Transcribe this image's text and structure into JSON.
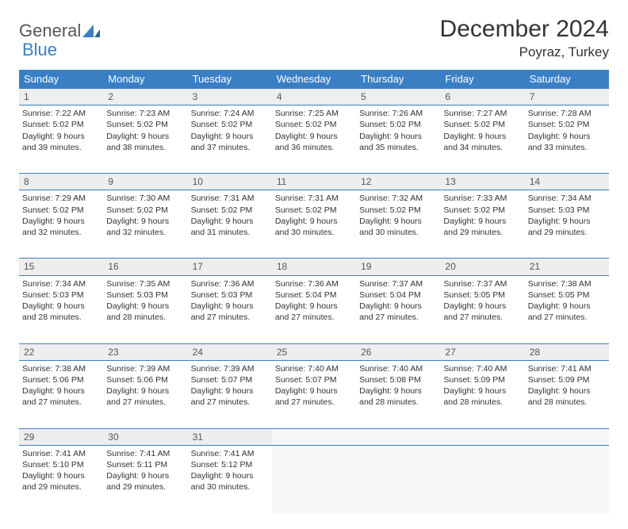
{
  "logo": {
    "part1": "General",
    "part2": "Blue"
  },
  "title": "December 2024",
  "location": "Poyraz, Turkey",
  "colors": {
    "header_bg": "#3a7fc4",
    "header_text": "#ffffff",
    "daynum_bg": "#eeeeee",
    "border": "#3a7fc4",
    "empty_bg": "#f7f7f7",
    "logo_gray": "#555555",
    "logo_blue": "#3a7fc4"
  },
  "weekdays": [
    "Sunday",
    "Monday",
    "Tuesday",
    "Wednesday",
    "Thursday",
    "Friday",
    "Saturday"
  ],
  "weeks": [
    [
      {
        "num": "1",
        "sunrise": "Sunrise: 7:22 AM",
        "sunset": "Sunset: 5:02 PM",
        "day1": "Daylight: 9 hours",
        "day2": "and 39 minutes."
      },
      {
        "num": "2",
        "sunrise": "Sunrise: 7:23 AM",
        "sunset": "Sunset: 5:02 PM",
        "day1": "Daylight: 9 hours",
        "day2": "and 38 minutes."
      },
      {
        "num": "3",
        "sunrise": "Sunrise: 7:24 AM",
        "sunset": "Sunset: 5:02 PM",
        "day1": "Daylight: 9 hours",
        "day2": "and 37 minutes."
      },
      {
        "num": "4",
        "sunrise": "Sunrise: 7:25 AM",
        "sunset": "Sunset: 5:02 PM",
        "day1": "Daylight: 9 hours",
        "day2": "and 36 minutes."
      },
      {
        "num": "5",
        "sunrise": "Sunrise: 7:26 AM",
        "sunset": "Sunset: 5:02 PM",
        "day1": "Daylight: 9 hours",
        "day2": "and 35 minutes."
      },
      {
        "num": "6",
        "sunrise": "Sunrise: 7:27 AM",
        "sunset": "Sunset: 5:02 PM",
        "day1": "Daylight: 9 hours",
        "day2": "and 34 minutes."
      },
      {
        "num": "7",
        "sunrise": "Sunrise: 7:28 AM",
        "sunset": "Sunset: 5:02 PM",
        "day1": "Daylight: 9 hours",
        "day2": "and 33 minutes."
      }
    ],
    [
      {
        "num": "8",
        "sunrise": "Sunrise: 7:29 AM",
        "sunset": "Sunset: 5:02 PM",
        "day1": "Daylight: 9 hours",
        "day2": "and 32 minutes."
      },
      {
        "num": "9",
        "sunrise": "Sunrise: 7:30 AM",
        "sunset": "Sunset: 5:02 PM",
        "day1": "Daylight: 9 hours",
        "day2": "and 32 minutes."
      },
      {
        "num": "10",
        "sunrise": "Sunrise: 7:31 AM",
        "sunset": "Sunset: 5:02 PM",
        "day1": "Daylight: 9 hours",
        "day2": "and 31 minutes."
      },
      {
        "num": "11",
        "sunrise": "Sunrise: 7:31 AM",
        "sunset": "Sunset: 5:02 PM",
        "day1": "Daylight: 9 hours",
        "day2": "and 30 minutes."
      },
      {
        "num": "12",
        "sunrise": "Sunrise: 7:32 AM",
        "sunset": "Sunset: 5:02 PM",
        "day1": "Daylight: 9 hours",
        "day2": "and 30 minutes."
      },
      {
        "num": "13",
        "sunrise": "Sunrise: 7:33 AM",
        "sunset": "Sunset: 5:02 PM",
        "day1": "Daylight: 9 hours",
        "day2": "and 29 minutes."
      },
      {
        "num": "14",
        "sunrise": "Sunrise: 7:34 AM",
        "sunset": "Sunset: 5:03 PM",
        "day1": "Daylight: 9 hours",
        "day2": "and 29 minutes."
      }
    ],
    [
      {
        "num": "15",
        "sunrise": "Sunrise: 7:34 AM",
        "sunset": "Sunset: 5:03 PM",
        "day1": "Daylight: 9 hours",
        "day2": "and 28 minutes."
      },
      {
        "num": "16",
        "sunrise": "Sunrise: 7:35 AM",
        "sunset": "Sunset: 5:03 PM",
        "day1": "Daylight: 9 hours",
        "day2": "and 28 minutes."
      },
      {
        "num": "17",
        "sunrise": "Sunrise: 7:36 AM",
        "sunset": "Sunset: 5:03 PM",
        "day1": "Daylight: 9 hours",
        "day2": "and 27 minutes."
      },
      {
        "num": "18",
        "sunrise": "Sunrise: 7:36 AM",
        "sunset": "Sunset: 5:04 PM",
        "day1": "Daylight: 9 hours",
        "day2": "and 27 minutes."
      },
      {
        "num": "19",
        "sunrise": "Sunrise: 7:37 AM",
        "sunset": "Sunset: 5:04 PM",
        "day1": "Daylight: 9 hours",
        "day2": "and 27 minutes."
      },
      {
        "num": "20",
        "sunrise": "Sunrise: 7:37 AM",
        "sunset": "Sunset: 5:05 PM",
        "day1": "Daylight: 9 hours",
        "day2": "and 27 minutes."
      },
      {
        "num": "21",
        "sunrise": "Sunrise: 7:38 AM",
        "sunset": "Sunset: 5:05 PM",
        "day1": "Daylight: 9 hours",
        "day2": "and 27 minutes."
      }
    ],
    [
      {
        "num": "22",
        "sunrise": "Sunrise: 7:38 AM",
        "sunset": "Sunset: 5:06 PM",
        "day1": "Daylight: 9 hours",
        "day2": "and 27 minutes."
      },
      {
        "num": "23",
        "sunrise": "Sunrise: 7:39 AM",
        "sunset": "Sunset: 5:06 PM",
        "day1": "Daylight: 9 hours",
        "day2": "and 27 minutes."
      },
      {
        "num": "24",
        "sunrise": "Sunrise: 7:39 AM",
        "sunset": "Sunset: 5:07 PM",
        "day1": "Daylight: 9 hours",
        "day2": "and 27 minutes."
      },
      {
        "num": "25",
        "sunrise": "Sunrise: 7:40 AM",
        "sunset": "Sunset: 5:07 PM",
        "day1": "Daylight: 9 hours",
        "day2": "and 27 minutes."
      },
      {
        "num": "26",
        "sunrise": "Sunrise: 7:40 AM",
        "sunset": "Sunset: 5:08 PM",
        "day1": "Daylight: 9 hours",
        "day2": "and 28 minutes."
      },
      {
        "num": "27",
        "sunrise": "Sunrise: 7:40 AM",
        "sunset": "Sunset: 5:09 PM",
        "day1": "Daylight: 9 hours",
        "day2": "and 28 minutes."
      },
      {
        "num": "28",
        "sunrise": "Sunrise: 7:41 AM",
        "sunset": "Sunset: 5:09 PM",
        "day1": "Daylight: 9 hours",
        "day2": "and 28 minutes."
      }
    ],
    [
      {
        "num": "29",
        "sunrise": "Sunrise: 7:41 AM",
        "sunset": "Sunset: 5:10 PM",
        "day1": "Daylight: 9 hours",
        "day2": "and 29 minutes."
      },
      {
        "num": "30",
        "sunrise": "Sunrise: 7:41 AM",
        "sunset": "Sunset: 5:11 PM",
        "day1": "Daylight: 9 hours",
        "day2": "and 29 minutes."
      },
      {
        "num": "31",
        "sunrise": "Sunrise: 7:41 AM",
        "sunset": "Sunset: 5:12 PM",
        "day1": "Daylight: 9 hours",
        "day2": "and 30 minutes."
      },
      null,
      null,
      null,
      null
    ]
  ]
}
